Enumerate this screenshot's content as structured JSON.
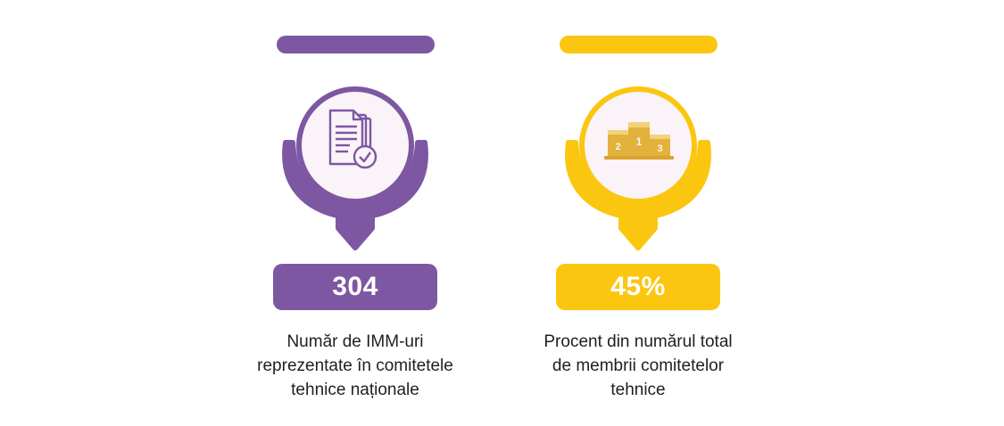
{
  "colors": {
    "purple": "#7E57A3",
    "yellow": "#FBC60F",
    "icon_bg": "#FAF3F7",
    "gold": "#E3B23C"
  },
  "stats": [
    {
      "value": "304",
      "icon": "document-check-icon",
      "caption_lines": [
        "Număr de IMM-uri",
        "reprezentate în comitetele",
        "tehnice naționale"
      ]
    },
    {
      "value": "45%",
      "icon": "podium-icon",
      "podium_labels": [
        "2",
        "1",
        "3"
      ],
      "caption_lines": [
        "Procent din numărul total",
        "de membrii comitetelor",
        "tehnice"
      ]
    }
  ]
}
